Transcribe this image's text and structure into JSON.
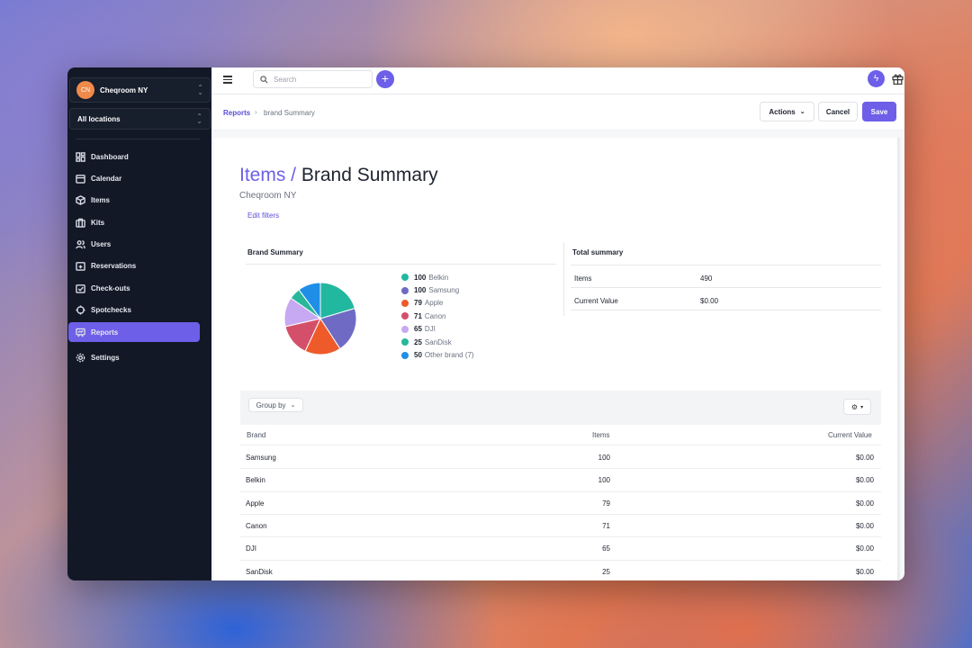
{
  "sidebar": {
    "org": {
      "initials": "CN",
      "name": "Cheqroom NY"
    },
    "location": "All locations",
    "nav": [
      {
        "label": "Dashboard",
        "icon": "dashboard-icon"
      },
      {
        "label": "Calendar",
        "icon": "calendar-icon"
      },
      {
        "label": "Items",
        "icon": "box-icon"
      },
      {
        "label": "Kits",
        "icon": "kit-icon"
      },
      {
        "label": "Users",
        "icon": "users-icon"
      },
      {
        "label": "Reservations",
        "icon": "reservation-icon"
      },
      {
        "label": "Check-outs",
        "icon": "checkout-icon"
      },
      {
        "label": "Spotchecks",
        "icon": "spotcheck-icon"
      },
      {
        "label": "Reports",
        "icon": "report-icon",
        "active": true
      },
      {
        "label": "Settings",
        "icon": "gear-icon"
      }
    ]
  },
  "topbar": {
    "search_placeholder": "Search"
  },
  "breadcrumb": {
    "root": "Reports",
    "sep": "›",
    "current": "brand Summary"
  },
  "toolbar": {
    "actions_label": "Actions",
    "cancel_label": "Cancel",
    "save_label": "Save"
  },
  "header": {
    "crumb": "Items /",
    "title": "Brand Summary",
    "subtitle": "Cheqroom NY",
    "edit_filters": "Edit filters"
  },
  "brand_summary": {
    "title": "Brand Summary",
    "slices": [
      {
        "count": "100",
        "label": "Belkin",
        "value": 100,
        "color": "#22b8a0"
      },
      {
        "count": "100",
        "label": "Samsung",
        "value": 100,
        "color": "#6f6bc4"
      },
      {
        "count": "79",
        "label": "Apple",
        "value": 79,
        "color": "#ef5a2a"
      },
      {
        "count": "71",
        "label": "Canon",
        "value": 71,
        "color": "#d4506a"
      },
      {
        "count": "65",
        "label": "DJI",
        "value": 65,
        "color": "#c7a8f2"
      },
      {
        "count": "25",
        "label": "SanDisk",
        "value": 25,
        "color": "#27b89a"
      },
      {
        "count": "50",
        "label": "Other brand (7)",
        "value": 50,
        "color": "#1f8ee6"
      }
    ]
  },
  "total_summary": {
    "title": "Total summary",
    "rows": [
      {
        "label": "Items",
        "value": "490"
      },
      {
        "label": "Current Value",
        "value": "$0.00"
      }
    ]
  },
  "table": {
    "group_by_label": "Group by",
    "columns": [
      "Brand",
      "Items",
      "Current Value"
    ],
    "rows": [
      [
        "Samsung",
        "100",
        "$0.00"
      ],
      [
        "Belkin",
        "100",
        "$0.00"
      ],
      [
        "Apple",
        "79",
        "$0.00"
      ],
      [
        "Canon",
        "71",
        "$0.00"
      ],
      [
        "DJI",
        "65",
        "$0.00"
      ],
      [
        "SanDisk",
        "25",
        "$0.00"
      ]
    ]
  }
}
